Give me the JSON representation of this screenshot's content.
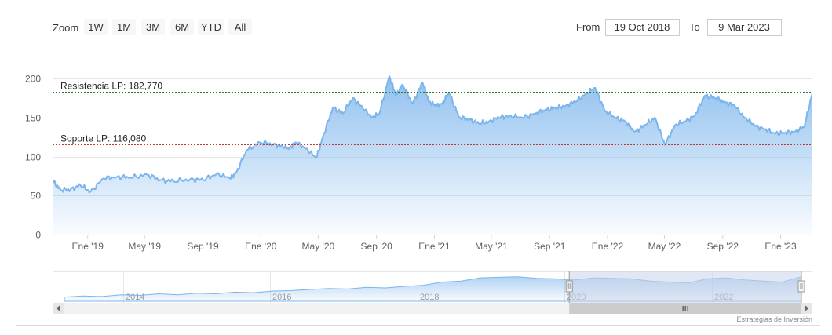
{
  "range_selector": {
    "zoom_label": "Zoom",
    "buttons": [
      "1W",
      "1M",
      "3M",
      "6M",
      "YTD",
      "All"
    ],
    "from_label": "From",
    "from_value": "19 Oct 2018",
    "to_label": "To",
    "to_value": "9 Mar 2023"
  },
  "colors": {
    "series_line": "#7cb5ec",
    "resistance_line": "#2a7a2a",
    "support_line": "#c0392b",
    "navigator_mask": "#c8d4ea"
  },
  "chart_data": {
    "type": "area",
    "title": "",
    "xlabel": "",
    "ylabel": "",
    "ylim": [
      0,
      200
    ],
    "yticks": [
      0,
      50,
      100,
      150,
      200
    ],
    "x_ticks": [
      "Ene '19",
      "May '19",
      "Sep '19",
      "Ene '20",
      "May '20",
      "Sep '20",
      "Ene '21",
      "May '21",
      "Sep '21",
      "Ene '22",
      "May '22",
      "Sep '22",
      "Ene '23"
    ],
    "x_range": [
      "2018-10-19",
      "2023-03-09"
    ],
    "grid": true,
    "legend": "none",
    "series": [
      {
        "x": [
          "2018-10-19",
          "2018-11-05",
          "2018-11-26",
          "2018-12-17",
          "2019-01-07",
          "2019-02-04",
          "2019-03-04",
          "2019-04-01",
          "2019-05-06",
          "2019-06-03",
          "2019-07-01",
          "2019-08-05",
          "2019-09-02",
          "2019-09-30",
          "2019-10-28",
          "2019-11-11",
          "2019-12-02",
          "2019-12-30",
          "2020-01-27",
          "2020-02-17",
          "2020-03-02",
          "2020-03-16",
          "2020-04-06",
          "2020-04-27",
          "2020-05-11",
          "2020-06-01",
          "2020-06-22",
          "2020-07-13",
          "2020-08-03",
          "2020-08-24",
          "2020-09-07",
          "2020-09-28",
          "2020-10-12",
          "2020-10-26",
          "2020-11-16",
          "2020-12-07",
          "2020-12-21",
          "2021-01-04",
          "2021-01-18",
          "2021-02-01",
          "2021-02-22",
          "2021-03-15",
          "2021-04-05",
          "2021-04-26",
          "2021-05-17",
          "2021-06-07",
          "2021-07-05",
          "2021-08-02",
          "2021-08-23",
          "2021-09-13",
          "2021-10-04",
          "2021-10-25",
          "2021-11-15",
          "2021-12-06",
          "2021-12-27",
          "2022-01-17",
          "2022-02-07",
          "2022-02-28",
          "2022-03-21",
          "2022-04-11",
          "2022-05-02",
          "2022-05-23",
          "2022-06-13",
          "2022-07-04",
          "2022-07-25",
          "2022-08-15",
          "2022-09-05",
          "2022-09-26",
          "2022-10-17",
          "2022-11-07",
          "2022-11-28",
          "2022-12-19",
          "2023-01-09",
          "2023-01-30",
          "2023-02-20",
          "2023-03-09"
        ],
        "values": [
          69,
          57,
          58,
          63,
          55,
          72,
          74,
          73,
          77,
          70,
          68,
          71,
          70,
          78,
          72,
          80,
          108,
          118,
          116,
          112,
          111,
          118,
          110,
          98,
          125,
          163,
          155,
          175,
          162,
          150,
          155,
          203,
          178,
          192,
          168,
          195,
          170,
          165,
          168,
          182,
          150,
          148,
          142,
          145,
          150,
          152,
          150,
          155,
          160,
          162,
          165,
          170,
          180,
          188,
          158,
          150,
          145,
          132,
          140,
          150,
          115,
          140,
          145,
          152,
          178,
          175,
          170,
          165,
          150,
          140,
          135,
          130,
          130,
          132,
          138,
          182
        ]
      }
    ],
    "annotations": [
      {
        "label": "Resistencia LP: 182,770",
        "value": 182.77
      },
      {
        "label": "Soporte LP: 116,080",
        "value": 116.08
      }
    ]
  },
  "navigator": {
    "year_labels": [
      "2014",
      "2016",
      "2018",
      "2020",
      "2022"
    ],
    "values": [
      8,
      10,
      9,
      12,
      11,
      14,
      12,
      15,
      14,
      17,
      16,
      19,
      20,
      22,
      24,
      23,
      26,
      25,
      28,
      30,
      36,
      38,
      44,
      45,
      46,
      43,
      42,
      40,
      44,
      43,
      42,
      38,
      36,
      34,
      42,
      44,
      40,
      38,
      36,
      46
    ],
    "selection": [
      0.68,
      1.0
    ]
  },
  "credits": "Estrategias de Inversión"
}
